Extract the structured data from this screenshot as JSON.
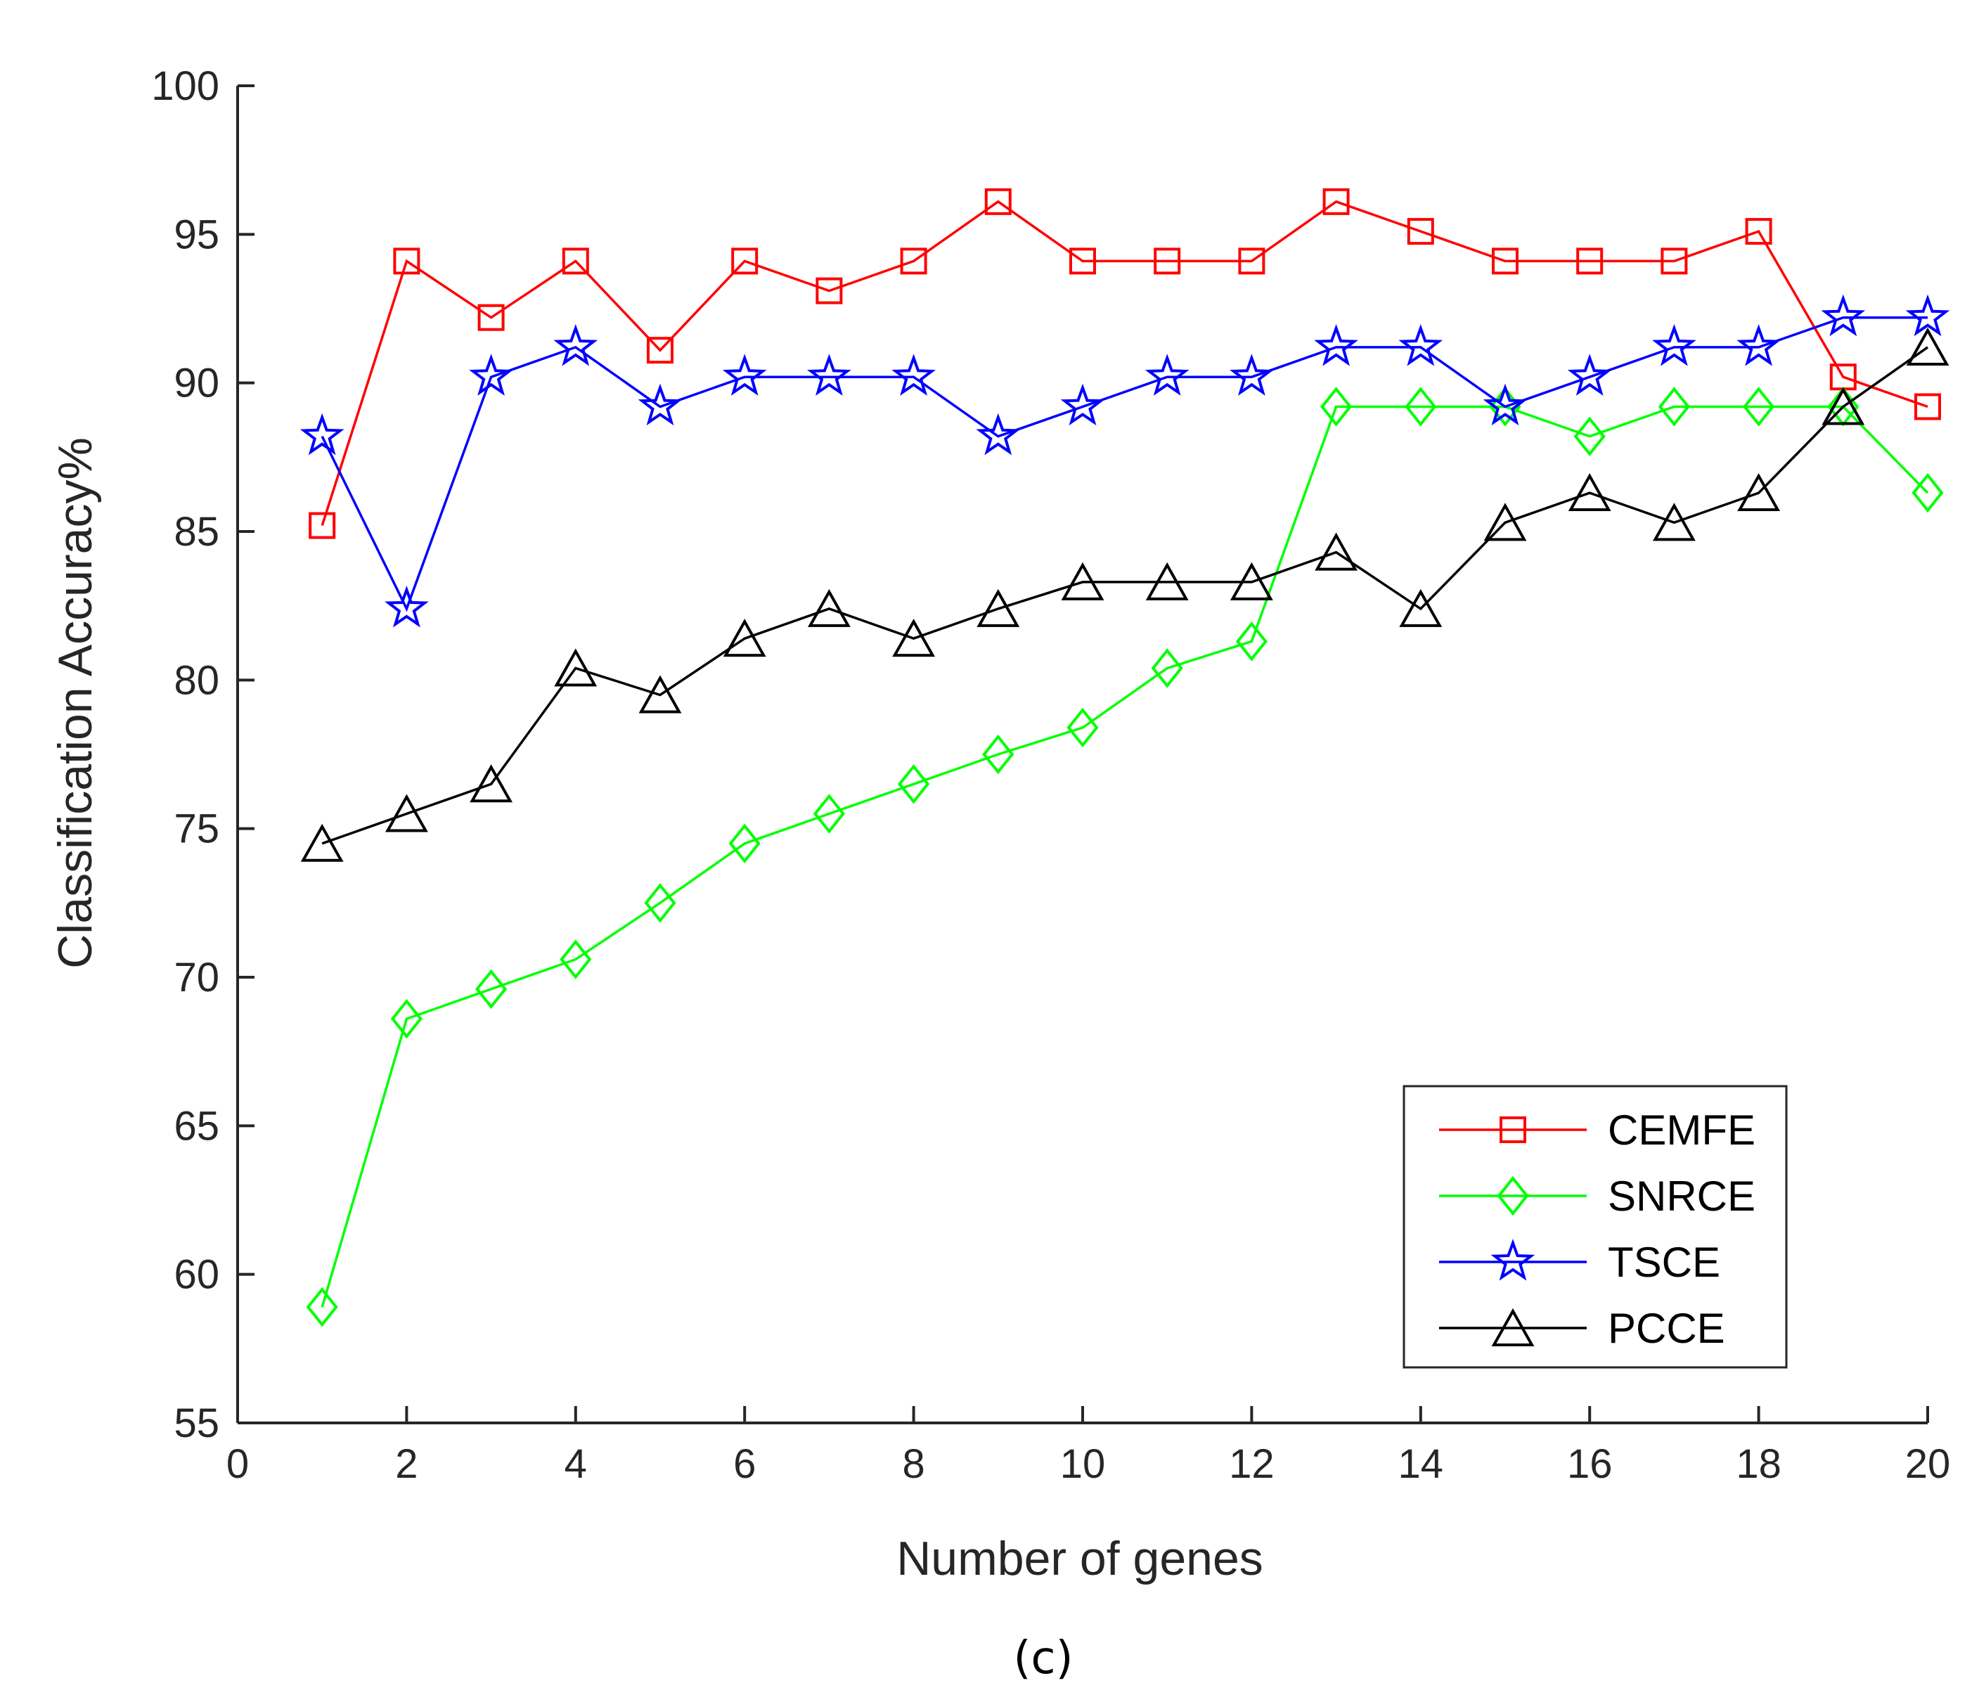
{
  "chart_data": {
    "type": "line",
    "title": "",
    "xlabel": "Number of genes",
    "ylabel": "Classification Accuracy%",
    "caption": "(c)",
    "xlim": [
      0,
      20
    ],
    "ylim": [
      55,
      100
    ],
    "xticks": [
      0,
      2,
      4,
      6,
      8,
      10,
      12,
      14,
      16,
      18,
      20
    ],
    "yticks": [
      55,
      60,
      65,
      70,
      75,
      80,
      85,
      90,
      95,
      100
    ],
    "grid": false,
    "legend_position": "bottom-right",
    "x": [
      1,
      2,
      3,
      4,
      5,
      6,
      7,
      8,
      9,
      10,
      11,
      12,
      13,
      14,
      15,
      16,
      17,
      18,
      19,
      20
    ],
    "series": [
      {
        "name": "CEMFE",
        "color": "#ff0000",
        "marker": "square",
        "values": [
          85.2,
          94.1,
          92.2,
          94.1,
          91.1,
          94.1,
          93.1,
          94.1,
          96.1,
          94.1,
          94.1,
          94.1,
          96.1,
          95.1,
          94.1,
          94.1,
          94.1,
          95.1,
          90.2,
          89.2
        ]
      },
      {
        "name": "SNRCE",
        "color": "#00ff00",
        "marker": "diamond",
        "values": [
          58.9,
          68.6,
          69.6,
          70.6,
          72.5,
          74.5,
          75.5,
          76.5,
          77.5,
          78.4,
          80.4,
          81.3,
          89.2,
          89.2,
          89.2,
          88.2,
          89.2,
          89.2,
          89.2,
          86.3
        ]
      },
      {
        "name": "TSCE",
        "color": "#0000ff",
        "marker": "star",
        "values": [
          88.2,
          82.4,
          90.2,
          91.2,
          89.2,
          90.2,
          90.2,
          90.2,
          88.2,
          89.2,
          90.2,
          90.2,
          91.2,
          91.2,
          89.2,
          90.2,
          91.2,
          91.2,
          92.2,
          92.2
        ]
      },
      {
        "name": "PCCE",
        "color": "#000000",
        "marker": "triangle",
        "values": [
          74.5,
          75.5,
          76.5,
          80.4,
          79.5,
          81.4,
          82.4,
          81.4,
          82.4,
          83.3,
          83.3,
          83.3,
          84.3,
          82.4,
          85.3,
          86.3,
          85.3,
          86.3,
          89.2,
          91.2
        ]
      }
    ]
  }
}
